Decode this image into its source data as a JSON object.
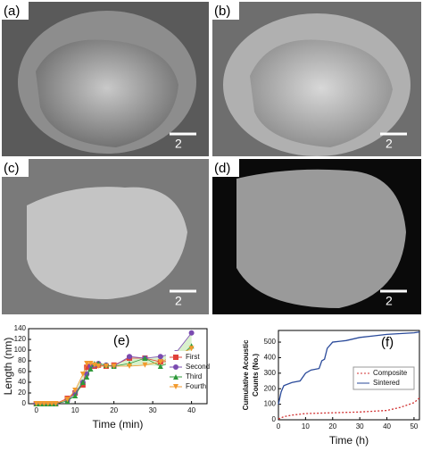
{
  "panels": [
    {
      "label": "(a)",
      "scale_bar": "2"
    },
    {
      "label": "(b)",
      "scale_bar": "2"
    },
    {
      "label": "(c)",
      "scale_bar": "2"
    },
    {
      "label": "(d)",
      "scale_bar": "2"
    }
  ],
  "chart_data": [
    {
      "type": "line",
      "label": "(e)",
      "xlabel": "Time (min)",
      "ylabel": "Length (nm)",
      "x": [
        0,
        1,
        2,
        3,
        4,
        5,
        8,
        10,
        12,
        13,
        14,
        15,
        16,
        18,
        20,
        24,
        28,
        32,
        36,
        40
      ],
      "xlim": [
        -2,
        44
      ],
      "xticks": [
        0,
        10,
        20,
        30,
        40
      ],
      "ylim": [
        0,
        140
      ],
      "yticks": [
        0,
        20,
        40,
        60,
        80,
        100,
        120,
        140
      ],
      "legend": "lower-right",
      "series": [
        {
          "name": "First",
          "color": "#e0403a",
          "marker": "square",
          "values": [
            0,
            0,
            0,
            0,
            0,
            0,
            10,
            20,
            35,
            68,
            70,
            70,
            72,
            70,
            72,
            85,
            85,
            78,
            80,
            90
          ]
        },
        {
          "name": "Second",
          "color": "#7a4bb0",
          "marker": "circle",
          "values": [
            0,
            0,
            0,
            0,
            0,
            0,
            5,
            20,
            40,
            55,
            70,
            72,
            75,
            72,
            70,
            88,
            85,
            88,
            95,
            132
          ]
        },
        {
          "name": "Third",
          "color": "#2e9a3a",
          "marker": "triangle",
          "values": [
            0,
            0,
            0,
            0,
            0,
            0,
            5,
            15,
            40,
            50,
            65,
            75,
            75,
            72,
            70,
            75,
            85,
            70,
            80,
            108
          ]
        },
        {
          "name": "Fourth",
          "color": "#f29a2e",
          "marker": "triangle-down",
          "values": [
            0,
            0,
            0,
            0,
            0,
            0,
            8,
            25,
            55,
            75,
            75,
            72,
            70,
            70,
            70,
            70,
            72,
            78,
            90,
            103
          ]
        }
      ]
    },
    {
      "type": "line",
      "label": "(f)",
      "xlabel": "Time (h)",
      "ylabel": [
        "Cumulative Acoustic",
        "Counts (No.)"
      ],
      "xlim": [
        0,
        52
      ],
      "xticks": [
        0,
        10,
        20,
        30,
        40,
        50
      ],
      "ylim": [
        0,
        575
      ],
      "yticks": [
        0,
        100,
        200,
        300,
        400,
        500
      ],
      "legend": "center-right",
      "series": [
        {
          "name": "Composite",
          "color": "#d03030",
          "dash": true,
          "x": [
            0,
            2,
            5,
            10,
            20,
            30,
            40,
            45,
            50,
            52
          ],
          "values": [
            5,
            20,
            30,
            40,
            45,
            50,
            60,
            80,
            110,
            140
          ]
        },
        {
          "name": "Sintered",
          "color": "#2a4a9a",
          "dash": false,
          "x": [
            0,
            1,
            2,
            5,
            8,
            10,
            12,
            15,
            16,
            17,
            18,
            20,
            25,
            30,
            35,
            40,
            45,
            50,
            52
          ],
          "values": [
            100,
            180,
            220,
            240,
            250,
            300,
            320,
            330,
            380,
            390,
            460,
            500,
            510,
            530,
            540,
            550,
            555,
            560,
            565
          ]
        }
      ]
    }
  ]
}
